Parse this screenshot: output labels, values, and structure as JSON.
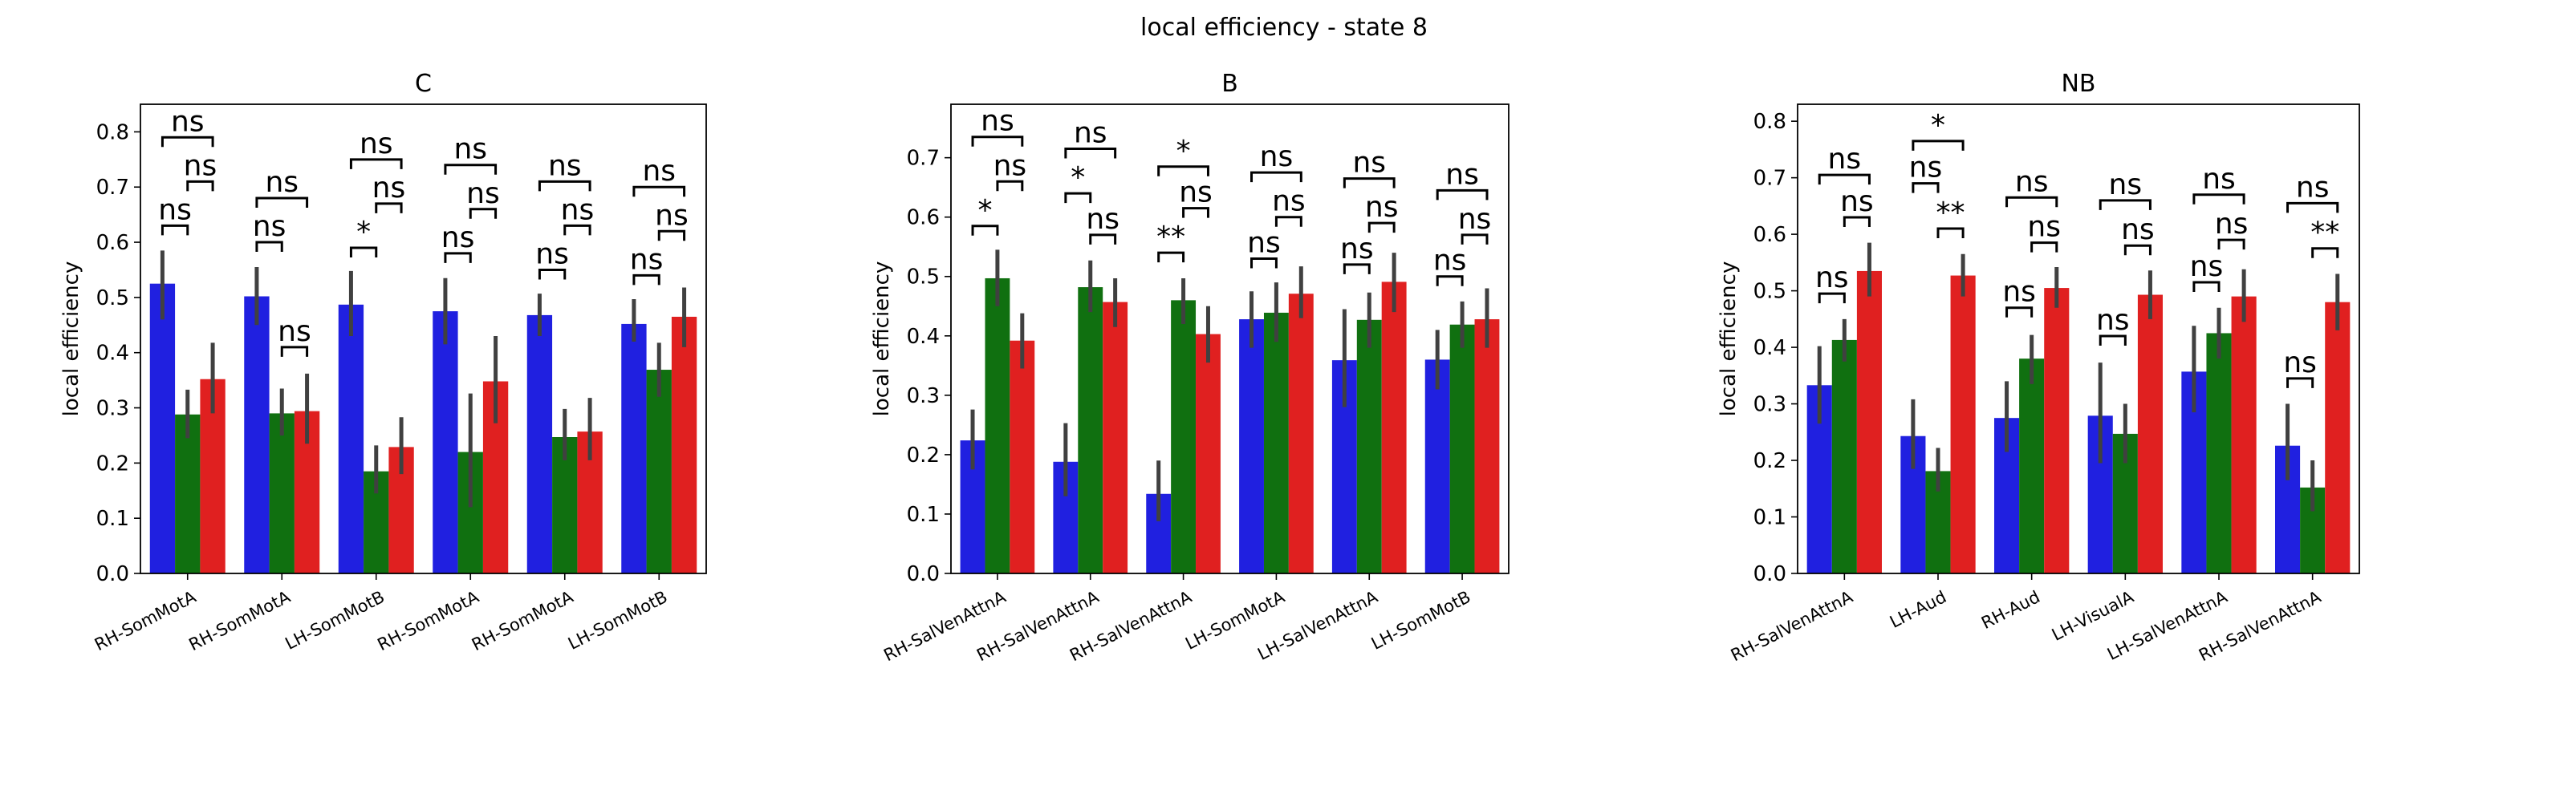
{
  "figure": {
    "title": "local efficiency - state 8",
    "colors": {
      "blue": "#2020e0",
      "green": "#107010",
      "red": "#e02020",
      "errorbar": "#404040"
    }
  },
  "chart_data": [
    {
      "type": "bar",
      "title": "C",
      "xlabel": "",
      "ylabel": "local efficiency",
      "ylim": [
        0,
        0.85
      ],
      "yticks": [
        "0.0",
        "0.1",
        "0.2",
        "0.3",
        "0.4",
        "0.5",
        "0.6",
        "0.7",
        "0.8"
      ],
      "categories": [
        "RH-SomMotA",
        "RH-SomMotA",
        "LH-SomMotB",
        "RH-SomMotA",
        "RH-SomMotA",
        "LH-SomMotB"
      ],
      "series": [
        {
          "color": "#2020e0",
          "values": [
            0.525,
            0.502,
            0.487,
            0.475,
            0.468,
            0.452
          ],
          "ci": [
            [
              0.46,
              0.585
            ],
            [
              0.45,
              0.555
            ],
            [
              0.43,
              0.548
            ],
            [
              0.415,
              0.535
            ],
            [
              0.43,
              0.507
            ],
            [
              0.42,
              0.497
            ]
          ]
        },
        {
          "color": "#107010",
          "values": [
            0.288,
            0.29,
            0.185,
            0.22,
            0.247,
            0.369
          ],
          "ci": [
            [
              0.245,
              0.333
            ],
            [
              0.25,
              0.335
            ],
            [
              0.145,
              0.232
            ],
            [
              0.12,
              0.326
            ],
            [
              0.205,
              0.298
            ],
            [
              0.32,
              0.418
            ]
          ]
        },
        {
          "color": "#e02020",
          "values": [
            0.352,
            0.294,
            0.229,
            0.348,
            0.257,
            0.465
          ],
          "ci": [
            [
              0.29,
              0.418
            ],
            [
              0.235,
              0.362
            ],
            [
              0.18,
              0.283
            ],
            [
              0.272,
              0.43
            ],
            [
              0.205,
              0.318
            ],
            [
              0.41,
              0.518
            ]
          ]
        }
      ],
      "annotations": [
        {
          "cat": 0,
          "from": 0,
          "to": 1,
          "label": "ns",
          "y": 0.63
        },
        {
          "cat": 0,
          "from": 1,
          "to": 2,
          "label": "ns",
          "y": 0.71
        },
        {
          "cat": 0,
          "from": 0,
          "to": 2,
          "label": "ns",
          "y": 0.79
        },
        {
          "cat": 1,
          "from": 0,
          "to": 1,
          "label": "ns",
          "y": 0.6
        },
        {
          "cat": 1,
          "from": 0,
          "to": 2,
          "label": "ns",
          "y": 0.68
        },
        {
          "cat": 1,
          "from": 1,
          "to": 2,
          "label": "ns",
          "y": 0.41
        },
        {
          "cat": 2,
          "from": 0,
          "to": 1,
          "label": "*",
          "y": 0.59
        },
        {
          "cat": 2,
          "from": 1,
          "to": 2,
          "label": "ns",
          "y": 0.67
        },
        {
          "cat": 2,
          "from": 0,
          "to": 2,
          "label": "ns",
          "y": 0.75
        },
        {
          "cat": 3,
          "from": 0,
          "to": 1,
          "label": "ns",
          "y": 0.58
        },
        {
          "cat": 3,
          "from": 1,
          "to": 2,
          "label": "ns",
          "y": 0.66
        },
        {
          "cat": 3,
          "from": 0,
          "to": 2,
          "label": "ns",
          "y": 0.74
        },
        {
          "cat": 4,
          "from": 0,
          "to": 1,
          "label": "ns",
          "y": 0.55
        },
        {
          "cat": 4,
          "from": 1,
          "to": 2,
          "label": "ns",
          "y": 0.63
        },
        {
          "cat": 4,
          "from": 0,
          "to": 2,
          "label": "ns",
          "y": 0.71
        },
        {
          "cat": 5,
          "from": 0,
          "to": 1,
          "label": "ns",
          "y": 0.54
        },
        {
          "cat": 5,
          "from": 1,
          "to": 2,
          "label": "ns",
          "y": 0.62
        },
        {
          "cat": 5,
          "from": 0,
          "to": 2,
          "label": "ns",
          "y": 0.7
        }
      ]
    },
    {
      "type": "bar",
      "title": "B",
      "xlabel": "",
      "ylabel": "local efficiency",
      "ylim": [
        0,
        0.79
      ],
      "yticks": [
        "0.0",
        "0.1",
        "0.2",
        "0.3",
        "0.4",
        "0.5",
        "0.6",
        "0.7"
      ],
      "categories": [
        "RH-SalVenAttnA",
        "RH-SalVenAttnA",
        "RH-SalVenAttnA",
        "LH-SomMotA",
        "LH-SalVenAttnA",
        "LH-SomMotB"
      ],
      "series": [
        {
          "color": "#2020e0",
          "values": [
            0.224,
            0.188,
            0.134,
            0.428,
            0.359,
            0.36
          ],
          "ci": [
            [
              0.175,
              0.276
            ],
            [
              0.13,
              0.253
            ],
            [
              0.088,
              0.19
            ],
            [
              0.38,
              0.475
            ],
            [
              0.28,
              0.445
            ],
            [
              0.31,
              0.41
            ]
          ]
        },
        {
          "color": "#107010",
          "values": [
            0.497,
            0.482,
            0.46,
            0.439,
            0.427,
            0.419
          ],
          "ci": [
            [
              0.45,
              0.545
            ],
            [
              0.44,
              0.527
            ],
            [
              0.42,
              0.497
            ],
            [
              0.39,
              0.49
            ],
            [
              0.38,
              0.473
            ],
            [
              0.38,
              0.458
            ]
          ]
        },
        {
          "color": "#e02020",
          "values": [
            0.392,
            0.457,
            0.403,
            0.471,
            0.491,
            0.428
          ],
          "ci": [
            [
              0.345,
              0.438
            ],
            [
              0.415,
              0.497
            ],
            [
              0.355,
              0.45
            ],
            [
              0.43,
              0.517
            ],
            [
              0.44,
              0.54
            ],
            [
              0.38,
              0.48
            ]
          ]
        }
      ],
      "annotations": [
        {
          "cat": 0,
          "from": 0,
          "to": 1,
          "label": "*",
          "y": 0.585
        },
        {
          "cat": 0,
          "from": 1,
          "to": 2,
          "label": "ns",
          "y": 0.66
        },
        {
          "cat": 0,
          "from": 0,
          "to": 2,
          "label": "ns",
          "y": 0.735
        },
        {
          "cat": 1,
          "from": 0,
          "to": 1,
          "label": "*",
          "y": 0.64
        },
        {
          "cat": 1,
          "from": 1,
          "to": 2,
          "label": "ns",
          "y": 0.57
        },
        {
          "cat": 1,
          "from": 0,
          "to": 2,
          "label": "ns",
          "y": 0.715
        },
        {
          "cat": 2,
          "from": 0,
          "to": 1,
          "label": "**",
          "y": 0.54
        },
        {
          "cat": 2,
          "from": 1,
          "to": 2,
          "label": "ns",
          "y": 0.615
        },
        {
          "cat": 2,
          "from": 0,
          "to": 2,
          "label": "*",
          "y": 0.685
        },
        {
          "cat": 3,
          "from": 0,
          "to": 1,
          "label": "ns",
          "y": 0.53
        },
        {
          "cat": 3,
          "from": 1,
          "to": 2,
          "label": "ns",
          "y": 0.6
        },
        {
          "cat": 3,
          "from": 0,
          "to": 2,
          "label": "ns",
          "y": 0.675
        },
        {
          "cat": 4,
          "from": 0,
          "to": 1,
          "label": "ns",
          "y": 0.52
        },
        {
          "cat": 4,
          "from": 1,
          "to": 2,
          "label": "ns",
          "y": 0.59
        },
        {
          "cat": 4,
          "from": 0,
          "to": 2,
          "label": "ns",
          "y": 0.665
        },
        {
          "cat": 5,
          "from": 0,
          "to": 1,
          "label": "ns",
          "y": 0.5
        },
        {
          "cat": 5,
          "from": 1,
          "to": 2,
          "label": "ns",
          "y": 0.57
        },
        {
          "cat": 5,
          "from": 0,
          "to": 2,
          "label": "ns",
          "y": 0.645
        }
      ]
    },
    {
      "type": "bar",
      "title": "NB",
      "xlabel": "",
      "ylabel": "local efficiency",
      "ylim": [
        0,
        0.83
      ],
      "yticks": [
        "0.0",
        "0.1",
        "0.2",
        "0.3",
        "0.4",
        "0.5",
        "0.6",
        "0.7",
        "0.8"
      ],
      "categories": [
        "RH-SalVenAttnA",
        "LH-Aud",
        "RH-Aud",
        "LH-VisualA",
        "LH-SalVenAttnA",
        "RH-SalVenAttnA"
      ],
      "series": [
        {
          "color": "#2020e0",
          "values": [
            0.333,
            0.243,
            0.275,
            0.279,
            0.357,
            0.226
          ],
          "ci": [
            [
              0.265,
              0.402
            ],
            [
              0.185,
              0.308
            ],
            [
              0.215,
              0.34
            ],
            [
              0.195,
              0.373
            ],
            [
              0.285,
              0.438
            ],
            [
              0.165,
              0.3
            ]
          ]
        },
        {
          "color": "#107010",
          "values": [
            0.413,
            0.181,
            0.38,
            0.247,
            0.425,
            0.152
          ],
          "ci": [
            [
              0.375,
              0.45
            ],
            [
              0.145,
              0.222
            ],
            [
              0.335,
              0.422
            ],
            [
              0.195,
              0.3
            ],
            [
              0.38,
              0.47
            ],
            [
              0.11,
              0.2
            ]
          ]
        },
        {
          "color": "#e02020",
          "values": [
            0.535,
            0.527,
            0.505,
            0.493,
            0.49,
            0.48
          ],
          "ci": [
            [
              0.49,
              0.585
            ],
            [
              0.49,
              0.565
            ],
            [
              0.47,
              0.542
            ],
            [
              0.45,
              0.536
            ],
            [
              0.445,
              0.538
            ],
            [
              0.43,
              0.53
            ]
          ]
        }
      ],
      "annotations": [
        {
          "cat": 0,
          "from": 0,
          "to": 1,
          "label": "ns",
          "y": 0.495
        },
        {
          "cat": 0,
          "from": 1,
          "to": 2,
          "label": "ns",
          "y": 0.63
        },
        {
          "cat": 0,
          "from": 0,
          "to": 2,
          "label": "ns",
          "y": 0.705
        },
        {
          "cat": 1,
          "from": 0,
          "to": 1,
          "label": "ns",
          "y": 0.69
        },
        {
          "cat": 1,
          "from": 1,
          "to": 2,
          "label": "**",
          "y": 0.61
        },
        {
          "cat": 1,
          "from": 0,
          "to": 2,
          "label": "*",
          "y": 0.765
        },
        {
          "cat": 2,
          "from": 0,
          "to": 1,
          "label": "ns",
          "y": 0.47
        },
        {
          "cat": 2,
          "from": 1,
          "to": 2,
          "label": "ns",
          "y": 0.585
        },
        {
          "cat": 2,
          "from": 0,
          "to": 2,
          "label": "ns",
          "y": 0.665
        },
        {
          "cat": 3,
          "from": 0,
          "to": 1,
          "label": "ns",
          "y": 0.42
        },
        {
          "cat": 3,
          "from": 1,
          "to": 2,
          "label": "ns",
          "y": 0.58
        },
        {
          "cat": 3,
          "from": 0,
          "to": 2,
          "label": "ns",
          "y": 0.66
        },
        {
          "cat": 4,
          "from": 0,
          "to": 1,
          "label": "ns",
          "y": 0.515
        },
        {
          "cat": 4,
          "from": 1,
          "to": 2,
          "label": "ns",
          "y": 0.59
        },
        {
          "cat": 4,
          "from": 0,
          "to": 2,
          "label": "ns",
          "y": 0.67
        },
        {
          "cat": 5,
          "from": 0,
          "to": 1,
          "label": "ns",
          "y": 0.345
        },
        {
          "cat": 5,
          "from": 1,
          "to": 2,
          "label": "**",
          "y": 0.575
        },
        {
          "cat": 5,
          "from": 0,
          "to": 2,
          "label": "ns",
          "y": 0.655
        }
      ]
    }
  ]
}
